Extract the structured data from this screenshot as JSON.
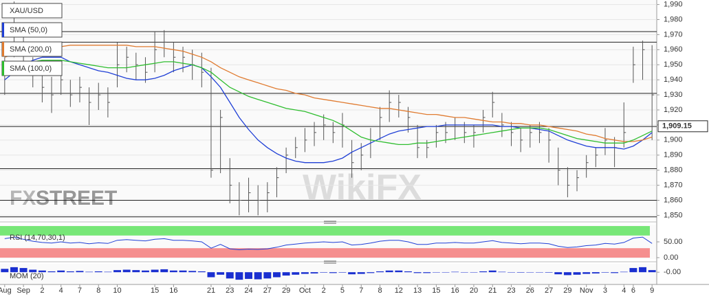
{
  "watermarks": [
    "FX",
    "STREET",
    "WikiFX"
  ],
  "chart_data": [
    {
      "type": "ohlc",
      "name": "XAU/USD",
      "categories": [
        "Aug",
        null,
        "Sep",
        null,
        "2",
        null,
        "4",
        null,
        "7",
        null,
        "8",
        null,
        "10",
        null,
        null,
        null,
        "15",
        null,
        "16",
        null,
        null,
        null,
        "21",
        null,
        "23",
        null,
        "24",
        null,
        "27",
        null,
        "29",
        null,
        "Oct",
        null,
        "2",
        null,
        "5",
        null,
        "7",
        null,
        "8",
        null,
        "12",
        null,
        "13",
        null,
        "15",
        null,
        "16",
        null,
        "20",
        null,
        "21",
        null,
        "23",
        null,
        "26",
        null,
        "27",
        null,
        "29",
        null,
        "Nov",
        null,
        "3",
        null,
        "4",
        "6",
        null,
        "9"
      ],
      "high": [
        1955,
        1992,
        1975,
        1955,
        1945,
        1942,
        1948,
        1940,
        1942,
        1935,
        1938,
        1935,
        1965,
        1962,
        1958,
        1955,
        1972,
        1973,
        1965,
        1962,
        1960,
        1958,
        1948,
        1920,
        1888,
        1872,
        1875,
        1870,
        1872,
        1882,
        1895,
        1902,
        1908,
        1912,
        1917,
        1912,
        1918,
        1900,
        1898,
        1908,
        1922,
        1933,
        1930,
        1922,
        1910,
        1900,
        1910,
        1912,
        1915,
        1912,
        1910,
        1920,
        1932,
        1918,
        1912,
        1908,
        1910,
        1912,
        1908,
        1895,
        1882,
        1880,
        1890,
        1895,
        1908,
        1902,
        1925,
        1962,
        1966,
        1963
      ],
      "low": [
        1930,
        1955,
        1945,
        1935,
        1925,
        1918,
        1930,
        1922,
        1925,
        1910,
        1920,
        1915,
        1935,
        1945,
        1940,
        1938,
        1945,
        1955,
        1945,
        1945,
        1940,
        1935,
        1875,
        1878,
        1858,
        1850,
        1852,
        1850,
        1852,
        1862,
        1878,
        1888,
        1892,
        1896,
        1900,
        1898,
        1895,
        1875,
        1880,
        1888,
        1900,
        1912,
        1915,
        1905,
        1888,
        1888,
        1895,
        1898,
        1900,
        1898,
        1895,
        1905,
        1915,
        1902,
        1896,
        1892,
        1895,
        1898,
        1885,
        1870,
        1862,
        1866,
        1875,
        1882,
        1890,
        1882,
        1895,
        1938,
        1940,
        1900
      ],
      "close": [
        1945,
        1975,
        1960,
        1945,
        1935,
        1930,
        1940,
        1930,
        1935,
        1925,
        1930,
        1925,
        1950,
        1955,
        1950,
        1945,
        1960,
        1965,
        1955,
        1955,
        1950,
        1945,
        1880,
        1915,
        1870,
        1860,
        1865,
        1860,
        1865,
        1875,
        1890,
        1895,
        1900,
        1905,
        1910,
        1905,
        1910,
        1885,
        1890,
        1900,
        1915,
        1925,
        1925,
        1915,
        1895,
        1895,
        1905,
        1905,
        1910,
        1905,
        1905,
        1915,
        1925,
        1910,
        1905,
        1900,
        1905,
        1905,
        1900,
        1880,
        1870,
        1875,
        1885,
        1890,
        1900,
        1895,
        1905,
        1950,
        1960,
        1930
      ],
      "color": "#555555",
      "series": [
        {
          "name": "SMA (50,0)",
          "color": "#1f3fd6",
          "values": [
            1940,
            1945,
            1950,
            1953,
            1955,
            1955,
            1955,
            1952,
            1950,
            1948,
            1946,
            1945,
            1943,
            1941,
            1940,
            1940,
            1941,
            1943,
            1946,
            1948,
            1950,
            1948,
            1942,
            1935,
            1925,
            1915,
            1907,
            1900,
            1895,
            1891,
            1888,
            1886,
            1885,
            1885,
            1885,
            1886,
            1888,
            1892,
            1895,
            1898,
            1901,
            1904,
            1906,
            1907,
            1908,
            1909,
            1909,
            1910,
            1910,
            1910,
            1910,
            1910,
            1910,
            1909,
            1909,
            1908,
            1908,
            1907,
            1906,
            1903,
            1900,
            1898,
            1896,
            1895,
            1895,
            1895,
            1894,
            1896,
            1900,
            1905
          ]
        },
        {
          "name": "SMA (200,0)",
          "color": "#e07b30",
          "values": [
            1955,
            1957,
            1959,
            1960,
            1961,
            1962,
            1962,
            1963,
            1963,
            1963,
            1963,
            1963,
            1963,
            1963,
            1962,
            1962,
            1962,
            1961,
            1960,
            1959,
            1957,
            1955,
            1952,
            1948,
            1945,
            1942,
            1940,
            1938,
            1936,
            1934,
            1933,
            1931,
            1930,
            1928,
            1927,
            1926,
            1925,
            1924,
            1923,
            1922,
            1921,
            1921,
            1920,
            1919,
            1918,
            1917,
            1917,
            1916,
            1915,
            1915,
            1914,
            1913,
            1912,
            1912,
            1911,
            1911,
            1910,
            1910,
            1909,
            1908,
            1907,
            1906,
            1904,
            1903,
            1901,
            1900,
            1899,
            1899,
            1900,
            1902
          ]
        },
        {
          "name": "SMA (100,0)",
          "color": "#2ebd2e",
          "values": [
            1948,
            1950,
            1951,
            1952,
            1953,
            1953,
            1953,
            1952,
            1951,
            1950,
            1949,
            1948,
            1948,
            1948,
            1949,
            1950,
            1951,
            1952,
            1952,
            1951,
            1950,
            1948,
            1945,
            1940,
            1935,
            1932,
            1929,
            1927,
            1925,
            1923,
            1921,
            1920,
            1919,
            1917,
            1915,
            1913,
            1910,
            1906,
            1902,
            1900,
            1899,
            1898,
            1897,
            1897,
            1898,
            1898,
            1899,
            1900,
            1901,
            1902,
            1903,
            1904,
            1905,
            1906,
            1907,
            1908,
            1908,
            1908,
            1907,
            1905,
            1903,
            1901,
            1900,
            1899,
            1898,
            1898,
            1898,
            1900,
            1903,
            1906
          ]
        }
      ],
      "hlines": [
        1972,
        1965,
        1931,
        1909,
        1881,
        1860,
        1849
      ],
      "last_price": {
        "value": 1909.15,
        "label": "1,909.15"
      },
      "ylim": [
        1847,
        1993
      ],
      "yticks": [
        {
          "value": 1850,
          "label": "1,850"
        },
        {
          "value": 1860,
          "label": "1,860"
        },
        {
          "value": 1870,
          "label": "1,870"
        },
        {
          "value": 1880,
          "label": "1,880"
        },
        {
          "value": 1890,
          "label": "1,890"
        },
        {
          "value": 1900,
          "label": "1,900"
        },
        {
          "value": 1910,
          "label": "1,910"
        },
        {
          "value": 1920,
          "label": "1,920"
        },
        {
          "value": 1930,
          "label": "1,930"
        },
        {
          "value": 1940,
          "label": "1,940"
        },
        {
          "value": 1950,
          "label": "1,950"
        },
        {
          "value": 1960,
          "label": "1,960"
        },
        {
          "value": 1970,
          "label": "1,970"
        },
        {
          "value": 1980,
          "label": "1,980"
        },
        {
          "value": 1990,
          "label": "1,990"
        }
      ]
    },
    {
      "type": "line",
      "name": "RSI (14,70,30,1)",
      "color": "#1f3fd6",
      "values": [
        60,
        65,
        58,
        52,
        48,
        46,
        50,
        46,
        48,
        44,
        47,
        45,
        55,
        57,
        55,
        53,
        58,
        60,
        55,
        55,
        53,
        50,
        30,
        42,
        28,
        25,
        27,
        26,
        28,
        33,
        40,
        43,
        46,
        48,
        50,
        48,
        50,
        40,
        42,
        46,
        52,
        55,
        55,
        50,
        42,
        42,
        46,
        46,
        48,
        46,
        46,
        50,
        54,
        48,
        46,
        44,
        46,
        46,
        44,
        36,
        32,
        34,
        38,
        40,
        45,
        43,
        48,
        62,
        65,
        45
      ],
      "bands": [
        {
          "range": [
            70,
            100
          ],
          "color": "#5fe35f"
        },
        {
          "range": [
            0,
            30
          ],
          "color": "#f37b7b"
        }
      ],
      "ylim": [
        0,
        100
      ],
      "yticks": [
        {
          "value": 50,
          "label": "50.00"
        },
        {
          "value": 0,
          "label": "0.00"
        }
      ]
    },
    {
      "type": "bar",
      "name": "MOM (20)",
      "color": "#1a2fd0",
      "values": [
        8,
        12,
        10,
        6,
        4,
        2,
        4,
        2,
        3,
        1,
        2,
        1,
        5,
        6,
        5,
        4,
        6,
        7,
        4,
        4,
        3,
        2,
        -12,
        -6,
        -15,
        -18,
        -16,
        -17,
        -15,
        -12,
        -8,
        -6,
        -4,
        -3,
        -1,
        -2,
        -1,
        -5,
        -4,
        -2,
        2,
        4,
        4,
        2,
        -2,
        -2,
        0,
        0,
        1,
        0,
        0,
        2,
        4,
        1,
        0,
        -1,
        0,
        0,
        -1,
        -5,
        -7,
        -6,
        -4,
        -3,
        -1,
        -2,
        1,
        10,
        12,
        5
      ],
      "ylim": [
        -26,
        20
      ],
      "yticks": [
        {
          "value": 0,
          "label": "-0.00"
        }
      ]
    }
  ]
}
